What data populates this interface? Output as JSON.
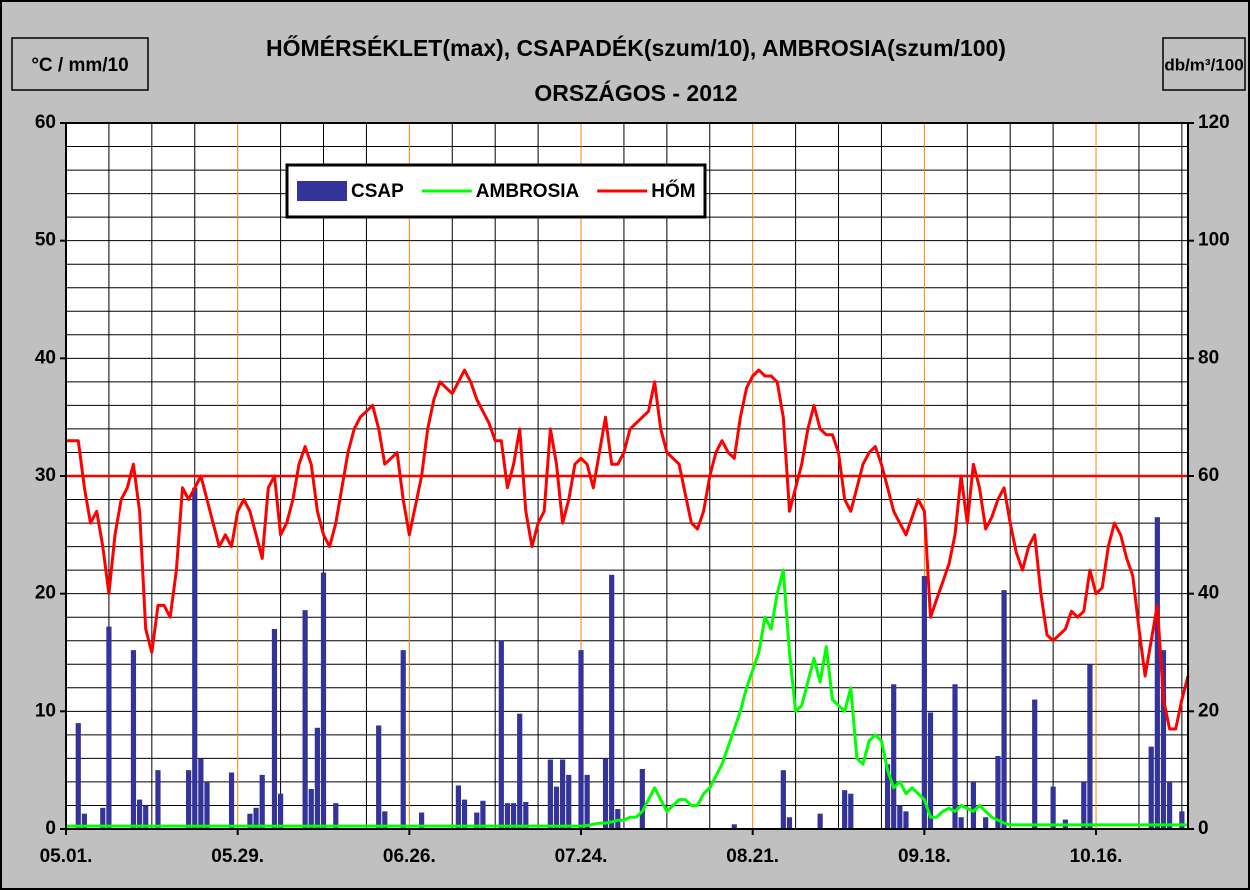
{
  "chart_data": {
    "type": "combo",
    "title": "HŐMÉRSÉKLET(max), CSAPADÉK(szum/10), AMBROSIA(szum/100)",
    "subtitle": "ORSZÁGOS - 2012",
    "y_unit": "°C / mm/10",
    "y2_unit": "db/m³/100",
    "categories": [
      "05.01.",
      null,
      null,
      null,
      null,
      null,
      null,
      null,
      null,
      null,
      null,
      null,
      null,
      null,
      null,
      null,
      null,
      null,
      null,
      null,
      null,
      null,
      null,
      null,
      null,
      null,
      null,
      null,
      "05.29.",
      null,
      null,
      null,
      null,
      null,
      null,
      null,
      null,
      null,
      null,
      null,
      null,
      null,
      null,
      null,
      null,
      null,
      null,
      null,
      null,
      null,
      null,
      null,
      null,
      null,
      null,
      null,
      "06.26.",
      null,
      null,
      null,
      null,
      null,
      null,
      null,
      null,
      null,
      null,
      null,
      null,
      null,
      null,
      null,
      null,
      null,
      null,
      null,
      null,
      null,
      null,
      null,
      null,
      null,
      null,
      null,
      "07.24.",
      null,
      null,
      null,
      null,
      null,
      null,
      null,
      null,
      null,
      null,
      null,
      null,
      null,
      null,
      null,
      null,
      null,
      null,
      null,
      null,
      null,
      null,
      null,
      null,
      null,
      null,
      null,
      "08.21.",
      null,
      null,
      null,
      null,
      null,
      null,
      null,
      null,
      null,
      null,
      null,
      null,
      null,
      null,
      null,
      null,
      null,
      null,
      null,
      null,
      null,
      null,
      null,
      null,
      null,
      null,
      null,
      "09.18.",
      null,
      null,
      null,
      null,
      null,
      null,
      null,
      null,
      null,
      null,
      null,
      null,
      null,
      null,
      null,
      null,
      null,
      null,
      null,
      null,
      null,
      null,
      null,
      null,
      null,
      null,
      null,
      "10.16.",
      null,
      null,
      null,
      null,
      null,
      null,
      null,
      null,
      null,
      null,
      null,
      null,
      null,
      null,
      null
    ],
    "series": [
      {
        "name": "CSAP",
        "type": "bar",
        "color": "#333399",
        "values": [
          0,
          0,
          9,
          1.3,
          0,
          0,
          1.8,
          17.2,
          0,
          0,
          0,
          15.2,
          2.5,
          2,
          0,
          5,
          0,
          0,
          0,
          0,
          5,
          29,
          6,
          4,
          0,
          0,
          0,
          4.8,
          0,
          0,
          1.3,
          1.8,
          4.6,
          0,
          17,
          3,
          0,
          0,
          0,
          18.6,
          3.4,
          8.6,
          21.8,
          0,
          2.2,
          0,
          0,
          0,
          0,
          0,
          0,
          8.8,
          1.5,
          0,
          0,
          15.2,
          0,
          0,
          1.4,
          0,
          0,
          0,
          0,
          0,
          3.7,
          2.5,
          0,
          1.4,
          2.4,
          0,
          0,
          16,
          2.2,
          2.2,
          9.8,
          2.3,
          0,
          0,
          0,
          5.9,
          3.6,
          5.9,
          4.6,
          0,
          15.2,
          4.6,
          0,
          0,
          6,
          21.6,
          1.7,
          0,
          0,
          0,
          5.1,
          0,
          0,
          0,
          0,
          0,
          0,
          0,
          0,
          0,
          0,
          0,
          0,
          0,
          0,
          0.4,
          0,
          0,
          0,
          0,
          0,
          0,
          0,
          5,
          1,
          0,
          0,
          0,
          0,
          1.3,
          0,
          0,
          0,
          3.3,
          3,
          0,
          0,
          0,
          0,
          0,
          5.5,
          12.3,
          2,
          1.5,
          0,
          0,
          21.5,
          9.9,
          0,
          0,
          0,
          12.3,
          1,
          0,
          4,
          0,
          1,
          0,
          6.2,
          20.3,
          0,
          0,
          0,
          0,
          11,
          0,
          0,
          3.6,
          0,
          0.8,
          0,
          0,
          4,
          14,
          0,
          0,
          0,
          0,
          0,
          0,
          0,
          0,
          0,
          7,
          26.5,
          15.2,
          4,
          0,
          1.5,
          0
        ]
      },
      {
        "name": "AMBROSIA",
        "type": "line",
        "axis": "y2",
        "color": "#00ff00",
        "values": [
          0.5,
          0.5,
          0.5,
          0.5,
          0.5,
          0.5,
          0.5,
          0.5,
          0.5,
          0.5,
          0.5,
          0.5,
          0.5,
          0.5,
          0.5,
          0.5,
          0.5,
          0.5,
          0.5,
          0.5,
          0.5,
          0.5,
          0.5,
          0.5,
          0.5,
          0.5,
          0.5,
          0.5,
          0.5,
          0.5,
          0.5,
          0.5,
          0.5,
          0.5,
          0.5,
          0.5,
          0.5,
          0.5,
          0.5,
          0.5,
          0.5,
          0.5,
          0.5,
          0.5,
          0.5,
          0.5,
          0.5,
          0.5,
          0.5,
          0.5,
          0.5,
          0.5,
          0.5,
          0.5,
          0.5,
          0.5,
          0.5,
          0.5,
          0.5,
          0.5,
          0.5,
          0.5,
          0.5,
          0.5,
          0.5,
          0.5,
          0.5,
          0.5,
          0.5,
          0.5,
          0.5,
          0.5,
          0.5,
          0.5,
          0.5,
          0.5,
          0.5,
          0.5,
          0.5,
          0.5,
          0.5,
          0.5,
          0.5,
          0.5,
          0.5,
          0.6,
          0.8,
          1,
          1,
          1.2,
          1.5,
          1.5,
          2,
          2,
          3,
          5,
          7,
          5,
          3,
          4,
          5,
          5,
          4,
          4,
          6,
          7,
          9,
          11,
          14,
          17,
          20,
          24,
          27,
          30,
          36,
          34,
          40,
          44,
          30,
          20,
          21,
          25,
          29,
          25,
          31,
          22,
          21,
          20,
          24,
          12,
          11,
          15,
          16,
          15,
          10,
          7,
          8,
          6,
          7,
          6,
          5,
          2,
          2,
          3,
          3.5,
          3,
          4,
          3.5,
          3,
          4,
          3,
          2,
          1.5,
          1,
          0.7,
          0.7,
          0.7,
          0.7,
          0.7,
          0.7,
          0.7,
          0.7,
          0.7,
          0.7,
          0.7,
          0.7,
          0.7,
          0.7,
          0.7,
          0.7,
          0.7,
          0.7,
          0.7,
          0.7,
          0.7,
          0.7,
          0.7,
          0.7,
          0.7,
          0.7,
          0.7,
          0.7,
          0.7,
          0.7
        ]
      },
      {
        "name": "HŐM",
        "type": "line",
        "color": "#ff0000",
        "values": [
          33,
          33,
          33,
          29,
          26,
          27,
          24,
          20,
          25,
          28,
          29,
          31,
          27,
          17,
          15,
          19,
          19,
          18,
          22,
          29,
          28,
          29,
          30,
          28,
          26,
          24,
          25,
          24,
          27,
          28,
          27,
          25,
          23,
          29,
          30,
          25,
          26,
          28,
          31,
          32.5,
          31,
          27,
          25,
          24,
          26,
          29,
          32,
          34,
          35,
          35.5,
          36,
          34,
          31,
          31.5,
          32,
          28,
          25,
          27.5,
          30,
          34,
          36.5,
          38,
          37.5,
          37,
          38,
          39,
          38,
          36.5,
          35.5,
          34.5,
          33,
          33,
          29,
          31,
          34,
          27,
          24,
          26,
          27,
          34,
          31,
          26,
          28,
          31,
          31.5,
          31,
          29,
          32,
          35,
          31,
          31,
          32,
          34,
          34.5,
          35,
          35.5,
          38,
          34,
          32,
          31.5,
          31,
          28.5,
          26,
          25.5,
          27,
          30,
          32,
          33,
          32,
          31.5,
          35,
          37.5,
          38.5,
          39,
          38.5,
          38.5,
          38,
          35,
          27,
          29,
          31,
          34,
          36,
          34,
          33.5,
          33.5,
          32,
          28,
          27,
          29,
          31,
          32,
          32.5,
          31,
          29,
          27,
          26,
          25,
          26.5,
          28,
          27,
          18,
          19.5,
          21,
          22.5,
          25,
          30,
          26,
          31,
          29,
          25.5,
          26.5,
          28,
          29,
          26,
          23.5,
          22,
          24,
          25,
          20,
          16.5,
          16,
          16.5,
          17,
          18.5,
          18,
          18.5,
          22,
          20,
          20.5,
          24,
          26,
          25,
          23,
          21.5,
          17,
          13,
          16,
          19,
          11,
          8.5,
          8.5,
          11,
          13
        ]
      }
    ],
    "reference_line": {
      "value": 30,
      "color": "#ff0000"
    },
    "ylim": [
      0,
      60
    ],
    "yticks": [
      0,
      10,
      20,
      30,
      40,
      50,
      60
    ],
    "yminorticks": [
      2,
      4,
      6,
      8,
      12,
      14,
      16,
      18,
      22,
      24,
      26,
      28,
      32,
      34,
      36,
      38,
      42,
      44,
      46,
      48,
      52,
      54,
      56,
      58
    ],
    "y2lim": [
      0,
      120
    ],
    "y2ticks": [
      0,
      20,
      40,
      60,
      80,
      100,
      120
    ],
    "grid": true,
    "legend": "top-left"
  }
}
